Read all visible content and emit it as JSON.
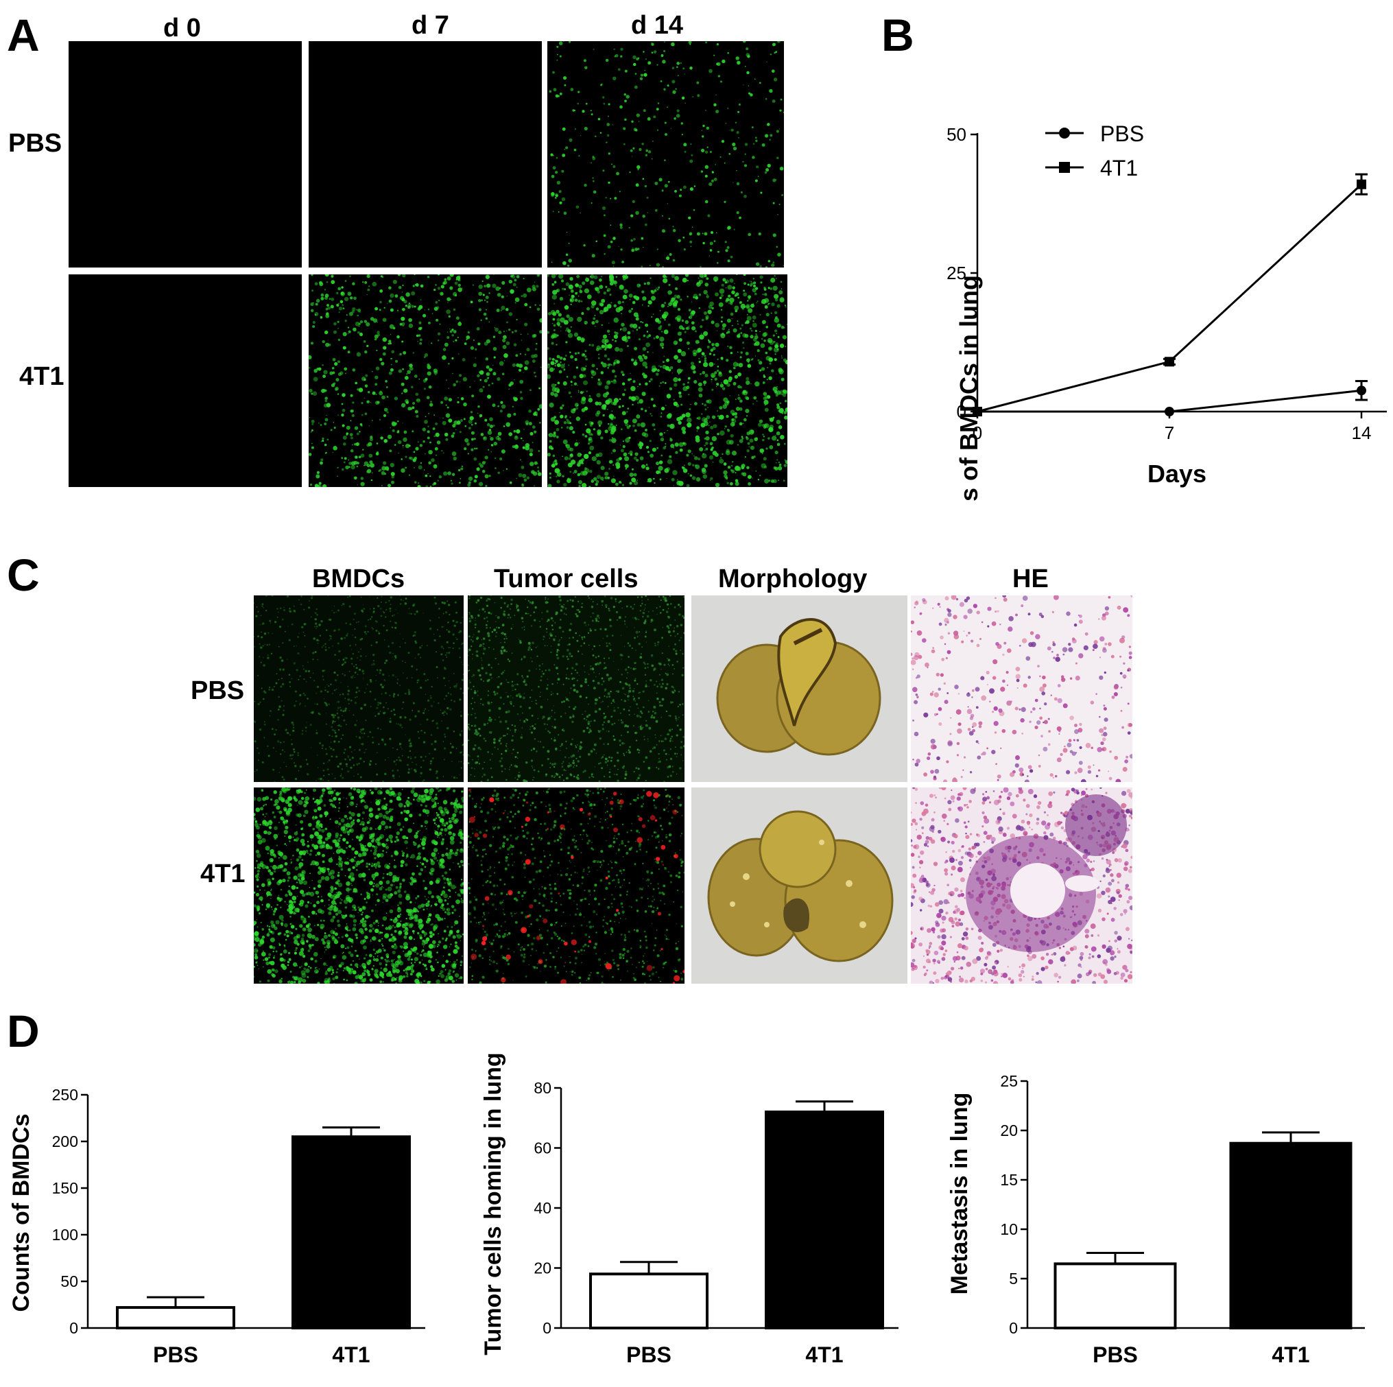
{
  "panelA": {
    "letter": "A",
    "columns": [
      "d 0",
      "d 7",
      "d 14"
    ],
    "rows": [
      "PBS",
      "4T1"
    ]
  },
  "panelB": {
    "letter": "B",
    "ylabel": "Counts of BMDCs in lung",
    "xlabel": "Days"
  },
  "panelC": {
    "letter": "C",
    "columns": [
      "BMDCs",
      "Tumor cells",
      "Morphology",
      "HE"
    ],
    "rows": [
      "PBS",
      "4T1"
    ]
  },
  "panelD": {
    "letter": "D"
  },
  "colors": {
    "fluorescence_green": "#2bd42b",
    "tumor_red": "#ff2020",
    "lung_tissue": "#b89a3a",
    "he_stain": "#b04aa8",
    "background": "#ffffff"
  },
  "chart_data": [
    {
      "id": "B",
      "type": "line",
      "title": "",
      "xlabel": "Days",
      "ylabel": "Counts of BMDCs in lung",
      "x": [
        0,
        7,
        14
      ],
      "xticks": [
        "0",
        "7",
        "14"
      ],
      "yticks": [
        "0",
        "25",
        "50"
      ],
      "ylim": [
        0,
        50
      ],
      "legend": "top-left",
      "series": [
        {
          "name": "PBS",
          "marker": "circle",
          "values": [
            0,
            0,
            3.8
          ],
          "errors": [
            0,
            0,
            1.7
          ]
        },
        {
          "name": "4T1",
          "marker": "square",
          "values": [
            0,
            9,
            41
          ],
          "errors": [
            0,
            0.5,
            1.8
          ]
        }
      ]
    },
    {
      "id": "D1",
      "type": "bar",
      "title": "",
      "xlabel": "",
      "ylabel": "Counts of BMDCs",
      "categories": [
        "PBS",
        "4T1"
      ],
      "values": [
        22,
        205
      ],
      "errors": [
        11,
        10
      ],
      "yticks": [
        "0",
        "50",
        "100",
        "150",
        "200",
        "250"
      ],
      "ylim": [
        0,
        250
      ]
    },
    {
      "id": "D2",
      "type": "bar",
      "title": "",
      "xlabel": "",
      "ylabel": "Tumor cells homing in lung",
      "categories": [
        "PBS",
        "4T1"
      ],
      "values": [
        18,
        72
      ],
      "errors": [
        4,
        3.5
      ],
      "yticks": [
        "0",
        "20",
        "40",
        "60",
        "80"
      ],
      "ylim": [
        0,
        80
      ]
    },
    {
      "id": "D3",
      "type": "bar",
      "title": "",
      "xlabel": "",
      "ylabel": "Metastasis in lung",
      "categories": [
        "PBS",
        "4T1"
      ],
      "values": [
        6.5,
        18.7
      ],
      "errors": [
        1.1,
        1.1
      ],
      "yticks": [
        "0",
        "5",
        "10",
        "15",
        "20",
        "25"
      ],
      "ylim": [
        0,
        25
      ]
    }
  ]
}
